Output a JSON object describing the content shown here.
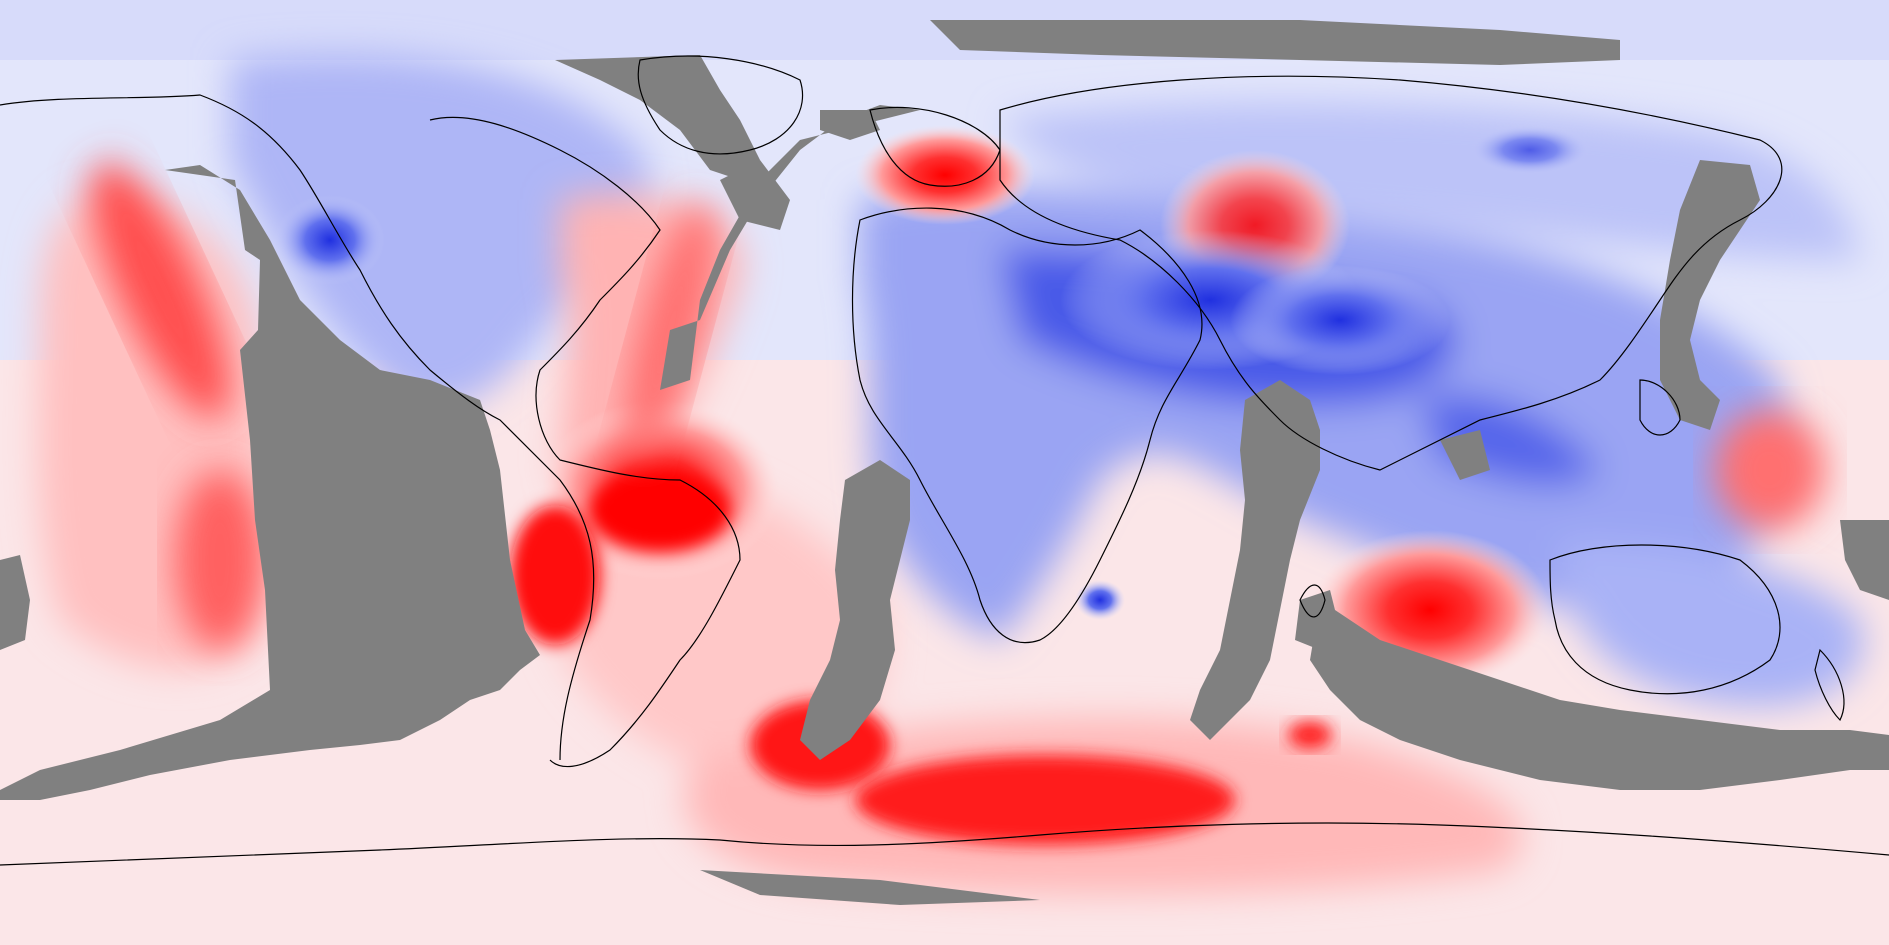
{
  "map": {
    "projection": "equirectangular",
    "variable_type": "anomaly / difference field",
    "color_scale": {
      "negative_strong": "#2030e0",
      "negative_mid": "#7f8cf2",
      "negative_weak": "#c9cffa",
      "neutral": "#f3f3ff",
      "positive_weak": "#ffd9d9",
      "positive_mid": "#ff8080",
      "positive_strong": "#ff0000",
      "masked": "#808080"
    },
    "labels": []
  }
}
